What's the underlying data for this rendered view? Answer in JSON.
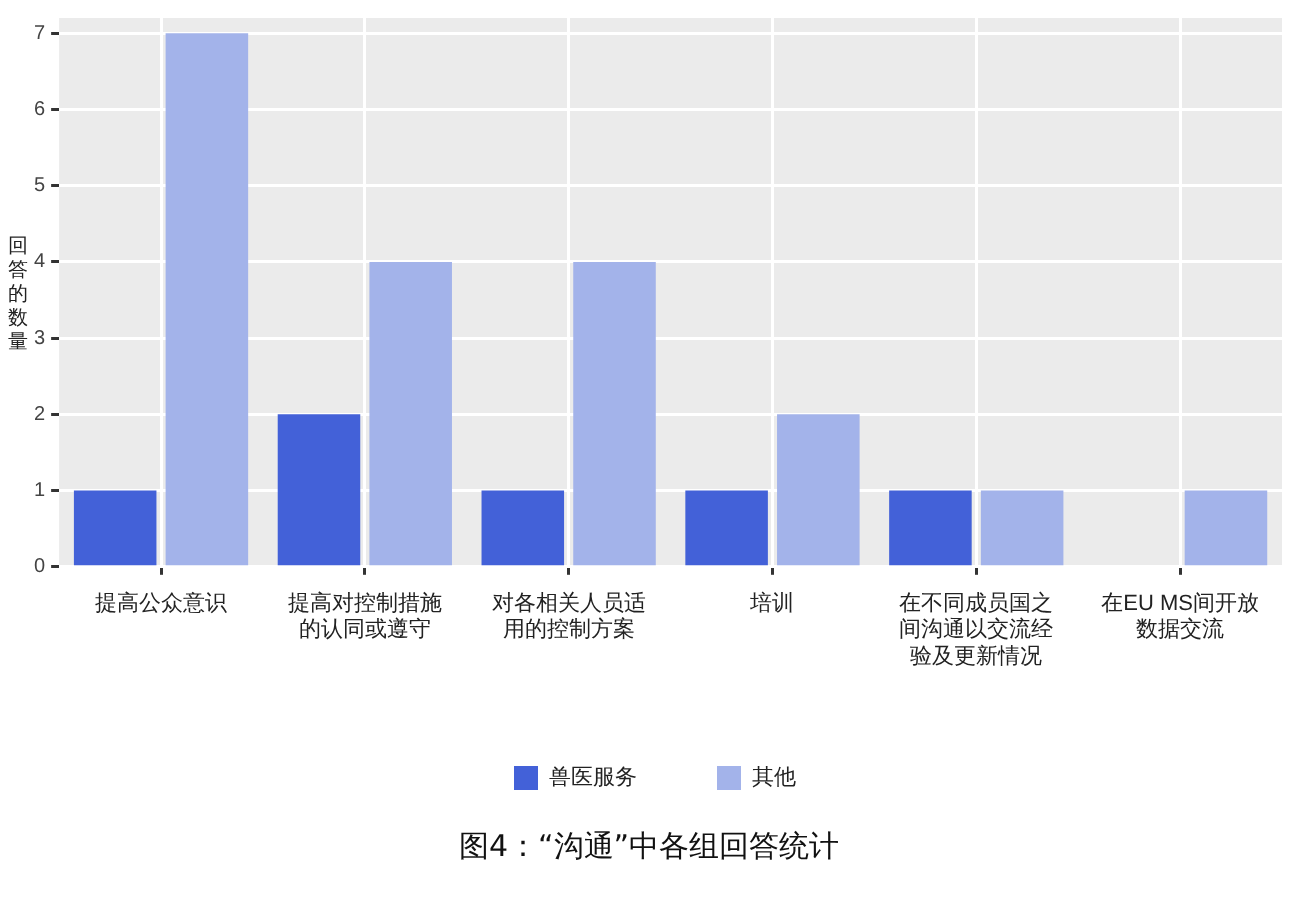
{
  "chart_data": {
    "type": "bar",
    "title": "图4：“沟通”中各组回答统计",
    "ylabel": "回答的数量",
    "categories": [
      "提高公众意识",
      "提高对控制措施的认同或遵守",
      "对各相关人员适用的控制方案",
      "培训",
      "在不同成员国之间沟通以交流经验及更新情况",
      "在EU MS间开放数据交流"
    ],
    "series": [
      {
        "name": "兽医服务",
        "color": "#4361d8",
        "values": [
          1,
          2,
          1,
          1,
          1,
          0
        ]
      },
      {
        "name": "其他",
        "color": "#a3b3ea",
        "values": [
          7,
          4,
          4,
          2,
          1,
          1
        ]
      }
    ],
    "ylim": [
      0,
      7.2
    ],
    "yticks": [
      0,
      1,
      2,
      3,
      4,
      5,
      6,
      7
    ],
    "grid": true,
    "legend": "bottom"
  }
}
